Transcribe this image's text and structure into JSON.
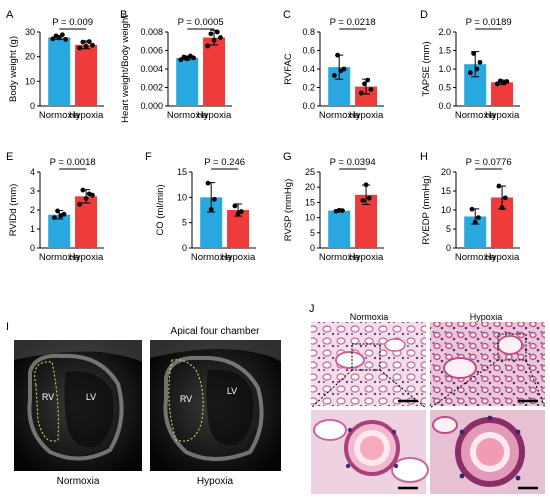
{
  "colors": {
    "normoxia": "#29a8e0",
    "hypoxia": "#ef3b39",
    "dot": "#000000"
  },
  "chart_data": [
    {
      "type": "bar",
      "panel": "A",
      "categories": [
        "Normoxia",
        "Hypoxia"
      ],
      "values": [
        27.8,
        24.8
      ],
      "errors": [
        0.8,
        1.6
      ],
      "points": [
        [
          27.2,
          28.4,
          27.6,
          28.9,
          27.0
        ],
        [
          23.5,
          25.9,
          24.2,
          26.1,
          24.6
        ]
      ],
      "ylabel": "Body weight (g)",
      "ylim": [
        0,
        30
      ],
      "yticks": [
        0,
        10,
        20,
        30
      ],
      "p_label": "P = 0.009"
    },
    {
      "type": "bar",
      "panel": "B",
      "categories": [
        "Normoxia",
        "Hypoxia"
      ],
      "values": [
        0.0052,
        0.0074
      ],
      "errors": [
        0.0002,
        0.0008
      ],
      "points": [
        [
          0.005,
          0.0053,
          0.0051,
          0.0054,
          0.0052
        ],
        [
          0.0065,
          0.0078,
          0.0071,
          0.008,
          0.0074
        ]
      ],
      "ylabel": "Heart weight/Body weight",
      "ylim": [
        0,
        0.008
      ],
      "yticks": [
        0,
        0.002,
        0.004,
        0.006,
        0.008
      ],
      "ytick_labels": [
        "0.000",
        "0.002",
        "0.004",
        "0.006",
        "0.008"
      ],
      "p_label": "P = 0.0005"
    },
    {
      "type": "bar",
      "panel": "C",
      "categories": [
        "Normoxia",
        "Hypoxia"
      ],
      "values": [
        0.42,
        0.21
      ],
      "errors": [
        0.13,
        0.08
      ],
      "points": [
        [
          0.33,
          0.55,
          0.38,
          0.4
        ],
        [
          0.14,
          0.24,
          0.28,
          0.18
        ]
      ],
      "ylabel": "RVFAC",
      "ylim": [
        0,
        0.8
      ],
      "yticks": [
        0,
        0.2,
        0.4,
        0.6,
        0.8
      ],
      "ytick_labels": [
        "0.0",
        "0.2",
        "0.4",
        "0.6",
        "0.8"
      ],
      "p_label": "P = 0.0218"
    },
    {
      "type": "bar",
      "panel": "D",
      "categories": [
        "Normoxia",
        "Hypoxia"
      ],
      "values": [
        1.13,
        0.64
      ],
      "errors": [
        0.34,
        0.06
      ],
      "points": [
        [
          0.9,
          1.42,
          1.0,
          1.18
        ],
        [
          0.6,
          0.68,
          0.62,
          0.66
        ]
      ],
      "ylabel": "TAPSE (mm)",
      "ylim": [
        0,
        2.0
      ],
      "yticks": [
        0,
        0.5,
        1.0,
        1.5,
        2.0
      ],
      "ytick_labels": [
        "0.0",
        "0.5",
        "1.0",
        "1.5",
        "2.0"
      ],
      "p_label": "P = 0.0189"
    },
    {
      "type": "bar",
      "panel": "E",
      "categories": [
        "Normoxia",
        "Hypoxia"
      ],
      "values": [
        1.75,
        2.72
      ],
      "errors": [
        0.22,
        0.35
      ],
      "points": [
        [
          1.6,
          1.95,
          1.7,
          1.78
        ],
        [
          2.3,
          3.05,
          2.6,
          2.85,
          2.78
        ]
      ],
      "ylabel": "RVIDd (mm)",
      "ylim": [
        0,
        4
      ],
      "yticks": [
        0,
        1,
        2,
        3,
        4
      ],
      "p_label": "P = 0.0018"
    },
    {
      "type": "bar",
      "panel": "F",
      "categories": [
        "Normoxia",
        "Hypoxia"
      ],
      "values": [
        10.0,
        7.5
      ],
      "errors": [
        2.9,
        1.2
      ],
      "points": [
        [
          12.8,
          7.6,
          9.6
        ],
        [
          8.3,
          6.8,
          7.2
        ]
      ],
      "ylabel": "CO (ml/min)",
      "ylim": [
        0,
        15
      ],
      "yticks": [
        0,
        5,
        10,
        15
      ],
      "p_label": "P = 0.246"
    },
    {
      "type": "bar",
      "panel": "G",
      "categories": [
        "Normoxia",
        "Hypoxia"
      ],
      "values": [
        12.3,
        17.5
      ],
      "errors": [
        0.3,
        3.2
      ],
      "points": [
        [
          12.1,
          12.4,
          12.3
        ],
        [
          15.6,
          20.8,
          16.4
        ]
      ],
      "ylabel": "RVSP (mmHg)",
      "ylim": [
        0,
        25
      ],
      "yticks": [
        0,
        5,
        10,
        15,
        20,
        25
      ],
      "p_label": "P = 0.0394"
    },
    {
      "type": "bar",
      "panel": "H",
      "categories": [
        "Normoxia",
        "Hypoxia"
      ],
      "values": [
        8.3,
        13.3
      ],
      "errors": [
        2.0,
        3.0
      ],
      "points": [
        [
          10.2,
          6.8,
          8.0
        ],
        [
          16.3,
          10.6,
          13.2
        ]
      ],
      "ylabel": "RVEDP (mmHg)",
      "ylim": [
        0,
        20
      ],
      "yticks": [
        0,
        5,
        10,
        15,
        20
      ],
      "p_label": "P = 0.0776"
    }
  ],
  "panel_i": {
    "letter": "I",
    "title": "Apical four chamber",
    "rv": "RV",
    "lv": "LV",
    "left_caption": "Normoxia",
    "right_caption": "Hypoxia"
  },
  "panel_j": {
    "letter": "J",
    "left_title": "Normoxia",
    "right_title": "Hypoxia"
  }
}
